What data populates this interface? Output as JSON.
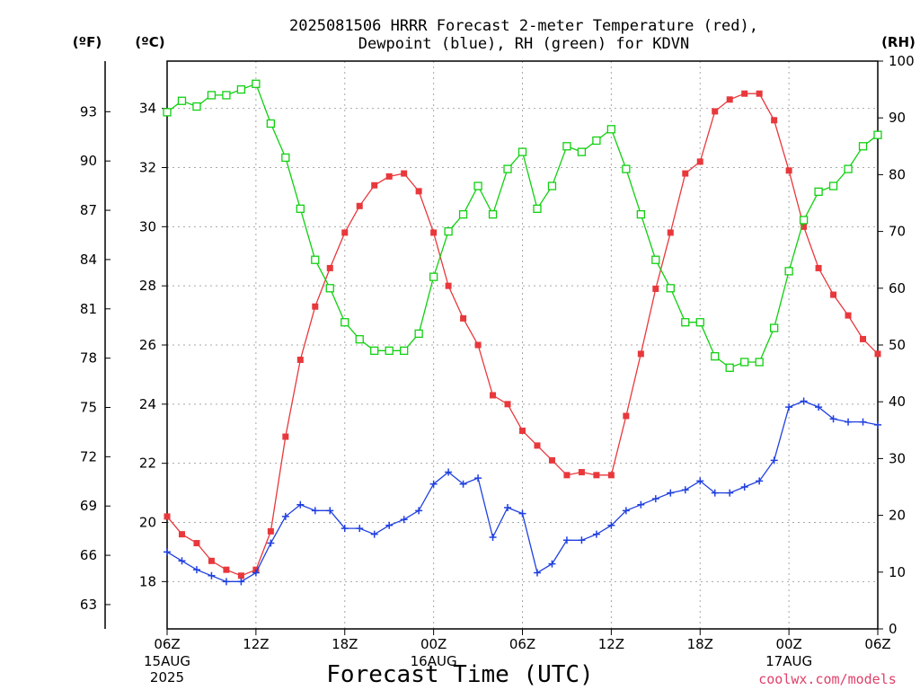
{
  "title_line1": "2025081506 HRRR Forecast 2-meter Temperature (red),",
  "title_line2": "Dewpoint (blue), RH (green) for KDVN",
  "xlabel": "Forecast Time (UTC)",
  "credit": "coolwx.com/models",
  "colors": {
    "temperature": "#e8383c",
    "dewpoint": "#2040e0",
    "rh": "#10d010"
  },
  "chart_data": {
    "type": "line",
    "x_start": "2025-08-15 06Z",
    "x_step_hours": 1,
    "x_ticks": [
      {
        "hour": 0,
        "label": "06Z",
        "sub": [
          "15AUG",
          "2025"
        ]
      },
      {
        "hour": 6,
        "label": "12Z",
        "sub": []
      },
      {
        "hour": 12,
        "label": "18Z",
        "sub": []
      },
      {
        "hour": 18,
        "label": "00Z",
        "sub": [
          "16AUG"
        ]
      },
      {
        "hour": 24,
        "label": "06Z",
        "sub": []
      },
      {
        "hour": 30,
        "label": "12Z",
        "sub": []
      },
      {
        "hour": 36,
        "label": "18Z",
        "sub": []
      },
      {
        "hour": 42,
        "label": "00Z",
        "sub": [
          "17AUG"
        ]
      },
      {
        "hour": 48,
        "label": "06Z",
        "sub": []
      }
    ],
    "xlim": [
      0,
      48
    ],
    "axes": {
      "fahrenheit": {
        "unit": "(ºF)",
        "ticks": [
          "63",
          "66",
          "69",
          "72",
          "75",
          "78",
          "81",
          "84",
          "87",
          "90",
          "93"
        ]
      },
      "celsius": {
        "unit": "(ºC)",
        "ylim": [
          16.4,
          35.6
        ],
        "ticks": [
          "18",
          "20",
          "22",
          "24",
          "26",
          "28",
          "30",
          "32",
          "34"
        ]
      },
      "rh": {
        "unit": "(RH)",
        "ylim": [
          0,
          100
        ],
        "ticks": [
          "0",
          "10",
          "20",
          "30",
          "40",
          "50",
          "60",
          "70",
          "80",
          "90",
          "100"
        ]
      }
    },
    "grid": true,
    "series": [
      {
        "key": "temperature",
        "axis": "celsius",
        "marker": "filled-square",
        "values": [
          20.2,
          19.6,
          19.3,
          18.7,
          18.4,
          18.2,
          18.4,
          19.7,
          22.9,
          25.5,
          27.3,
          28.6,
          29.8,
          30.7,
          31.4,
          31.7,
          31.8,
          31.2,
          29.8,
          28.0,
          26.9,
          26.0,
          24.3,
          24.0,
          23.1,
          22.6,
          22.1,
          21.6,
          21.7,
          21.6,
          21.6,
          23.6,
          25.7,
          27.9,
          29.8,
          31.8,
          32.2,
          33.9,
          34.3,
          34.5,
          34.5,
          33.6,
          31.9,
          30.0,
          28.6,
          27.7,
          27.0,
          26.2,
          25.7
        ]
      },
      {
        "key": "dewpoint",
        "axis": "celsius",
        "marker": "plus",
        "values": [
          19.0,
          18.7,
          18.4,
          18.2,
          18.0,
          18.0,
          18.3,
          19.3,
          20.2,
          20.6,
          20.4,
          20.4,
          19.8,
          19.8,
          19.6,
          19.9,
          20.1,
          20.4,
          21.3,
          21.7,
          21.3,
          21.5,
          19.5,
          20.5,
          20.3,
          18.3,
          18.6,
          19.4,
          19.4,
          19.6,
          19.9,
          20.4,
          20.6,
          20.8,
          21.0,
          21.1,
          21.4,
          21.0,
          21.0,
          21.2,
          21.4,
          22.1,
          23.9,
          24.1,
          23.9,
          23.5,
          23.4,
          23.4,
          23.3
        ]
      },
      {
        "key": "rh",
        "axis": "rh",
        "marker": "open-square",
        "values": [
          91,
          93,
          92,
          94,
          94,
          95,
          96,
          89,
          83,
          74,
          65,
          60,
          54,
          51,
          49,
          49,
          49,
          52,
          62,
          70,
          73,
          78,
          73,
          81,
          84,
          74,
          78,
          85,
          84,
          86,
          88,
          81,
          73,
          65,
          60,
          54,
          54,
          48,
          46,
          47,
          47,
          53,
          63,
          72,
          77,
          78,
          81,
          85,
          87
        ]
      }
    ]
  }
}
